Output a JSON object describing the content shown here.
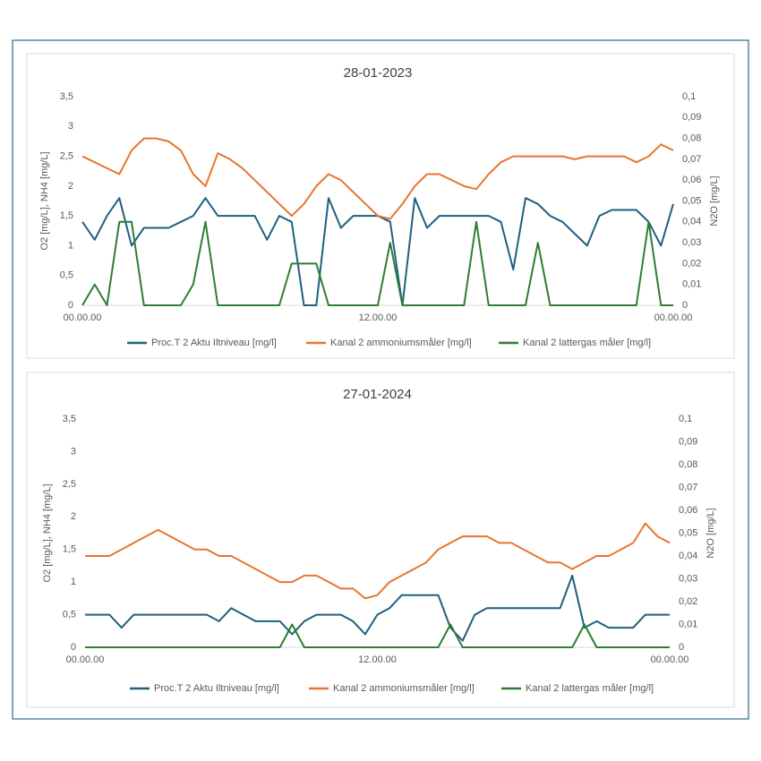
{
  "chart_data": [
    {
      "type": "line",
      "title": "28-01-2023",
      "y_label": "O2 [mg/L], NH4 [mg/L]",
      "y2_label": "N2O [mg/L]",
      "x": [
        0,
        0.5,
        1,
        1.5,
        2,
        2.5,
        3,
        3.5,
        4,
        4.5,
        5,
        5.5,
        6,
        6.5,
        7,
        7.5,
        8,
        8.5,
        9,
        9.5,
        10,
        10.5,
        11,
        11.5,
        12,
        12.5,
        13,
        13.5,
        14,
        14.5,
        15,
        15.5,
        16,
        16.5,
        17,
        17.5,
        18,
        18.5,
        19,
        19.5,
        20,
        20.5,
        21,
        21.5,
        22,
        22.5,
        23,
        23.5,
        24
      ],
      "xlim": [
        0,
        24
      ],
      "xticks": [
        {
          "value": 0,
          "label": "00.00.00"
        },
        {
          "value": 12,
          "label": "12.00.00"
        },
        {
          "value": 24,
          "label": "00.00.00"
        }
      ],
      "ylim": [
        0,
        3.5
      ],
      "yticks": [
        0,
        {
          "value": 0.5,
          "label": "0,5"
        },
        1,
        {
          "value": 1.5,
          "label": "1,5"
        },
        2,
        {
          "value": 2.5,
          "label": "2,5"
        },
        3,
        {
          "value": 3.5,
          "label": "3,5"
        }
      ],
      "y2lim": [
        0,
        0.1
      ],
      "y2ticks": [
        0,
        {
          "value": 0.01,
          "label": "0,01"
        },
        {
          "value": 0.02,
          "label": "0,02"
        },
        {
          "value": 0.03,
          "label": "0,03"
        },
        {
          "value": 0.04,
          "label": "0,04"
        },
        {
          "value": 0.05,
          "label": "0,05"
        },
        {
          "value": 0.06,
          "label": "0,06"
        },
        {
          "value": 0.07,
          "label": "0,07"
        },
        {
          "value": 0.08,
          "label": "0,08"
        },
        {
          "value": 0.09,
          "label": "0,09"
        },
        {
          "value": 0.1,
          "label": "0,1"
        }
      ],
      "series": [
        {
          "name": "Proc.T 2 Aktu Iltniveau [mg/l]",
          "color": "#1f5f80",
          "values": [
            1.4,
            1.1,
            1.5,
            1.8,
            1.0,
            1.3,
            1.3,
            1.3,
            1.4,
            1.5,
            1.8,
            1.5,
            1.5,
            1.5,
            1.5,
            1.1,
            1.5,
            1.4,
            0,
            0,
            1.8,
            1.3,
            1.5,
            1.5,
            1.5,
            1.4,
            0,
            1.8,
            1.3,
            1.5,
            1.5,
            1.5,
            1.5,
            1.5,
            1.4,
            0.6,
            1.8,
            1.7,
            1.5,
            1.4,
            1.2,
            1.0,
            1.5,
            1.6,
            1.6,
            1.6,
            1.4,
            1.0,
            1.7
          ]
        },
        {
          "name": "Kanal 2 ammoniumsmåler [mg/l]",
          "color": "#e8752d",
          "values": [
            2.5,
            2.4,
            2.3,
            2.2,
            2.6,
            2.8,
            2.8,
            2.75,
            2.6,
            2.2,
            2.0,
            2.55,
            2.45,
            2.3,
            2.1,
            1.9,
            1.7,
            1.5,
            1.7,
            2.0,
            2.2,
            2.1,
            1.9,
            1.7,
            1.5,
            1.45,
            1.7,
            2.0,
            2.2,
            2.2,
            2.1,
            2.0,
            1.95,
            2.2,
            2.4,
            2.5,
            2.5,
            2.5,
            2.5,
            2.5,
            2.45,
            2.5,
            2.5,
            2.5,
            2.5,
            2.4,
            2.5,
            2.7,
            2.6
          ]
        },
        {
          "name": "Kanal 2 lattergas måler [mg/l]",
          "color": "#2e7d32",
          "axis": "y2",
          "values": [
            0,
            0.01,
            0,
            0.04,
            0.04,
            0,
            0,
            0,
            0,
            0.01,
            0.04,
            0,
            0,
            0,
            0,
            0,
            0,
            0.02,
            0.02,
            0.02,
            0,
            0,
            0,
            0,
            0,
            0.03,
            0,
            0,
            0,
            0,
            0,
            0,
            0.04,
            0,
            0,
            0,
            0,
            0.03,
            0,
            0,
            0,
            0,
            0,
            0,
            0,
            0,
            0.04,
            0,
            0
          ]
        }
      ]
    },
    {
      "type": "line",
      "title": "27-01-2024",
      "y_label": "O2 [mg/L], NH4 [mg/L]",
      "y2_label": "N2O [mg/L]",
      "x": [
        0,
        0.5,
        1,
        1.5,
        2,
        2.5,
        3,
        3.5,
        4,
        4.5,
        5,
        5.5,
        6,
        6.5,
        7,
        7.5,
        8,
        8.5,
        9,
        9.5,
        10,
        10.5,
        11,
        11.5,
        12,
        12.5,
        13,
        13.5,
        14,
        14.5,
        15,
        15.5,
        16,
        16.5,
        17,
        17.5,
        18,
        18.5,
        19,
        19.5,
        20,
        20.5,
        21,
        21.5,
        22,
        22.5,
        23,
        23.5,
        24
      ],
      "xlim": [
        0,
        24
      ],
      "xticks": [
        {
          "value": 0,
          "label": "00.00.00"
        },
        {
          "value": 12,
          "label": "12.00.00"
        },
        {
          "value": 24,
          "label": "00.00.00"
        }
      ],
      "ylim": [
        0,
        3.5
      ],
      "yticks": [
        0,
        {
          "value": 0.5,
          "label": "0,5"
        },
        1,
        {
          "value": 1.5,
          "label": "1,5"
        },
        2,
        {
          "value": 2.5,
          "label": "2,5"
        },
        3,
        {
          "value": 3.5,
          "label": "3,5"
        }
      ],
      "y2lim": [
        0,
        0.1
      ],
      "y2ticks": [
        0,
        {
          "value": 0.01,
          "label": "0,01"
        },
        {
          "value": 0.02,
          "label": "0,02"
        },
        {
          "value": 0.03,
          "label": "0,03"
        },
        {
          "value": 0.04,
          "label": "0,04"
        },
        {
          "value": 0.05,
          "label": "0,05"
        },
        {
          "value": 0.06,
          "label": "0,06"
        },
        {
          "value": 0.07,
          "label": "0,07"
        },
        {
          "value": 0.08,
          "label": "0,08"
        },
        {
          "value": 0.09,
          "label": "0,09"
        },
        {
          "value": 0.1,
          "label": "0,1"
        }
      ],
      "series": [
        {
          "name": "Proc.T 2 Aktu Iltniveau [mg/l]",
          "color": "#1f5f80",
          "values": [
            0.5,
            0.5,
            0.5,
            0.3,
            0.5,
            0.5,
            0.5,
            0.5,
            0.5,
            0.5,
            0.5,
            0.4,
            0.6,
            0.5,
            0.4,
            0.4,
            0.4,
            0.2,
            0.4,
            0.5,
            0.5,
            0.5,
            0.4,
            0.2,
            0.5,
            0.6,
            0.8,
            0.8,
            0.8,
            0.8,
            0.3,
            0.1,
            0.5,
            0.6,
            0.6,
            0.6,
            0.6,
            0.6,
            0.6,
            0.6,
            1.1,
            0.3,
            0.4,
            0.3,
            0.3,
            0.3,
            0.5,
            0.5,
            0.5
          ]
        },
        {
          "name": "Kanal 2 ammoniumsmåler [mg/l]",
          "color": "#e8752d",
          "values": [
            1.4,
            1.4,
            1.4,
            1.5,
            1.6,
            1.7,
            1.8,
            1.7,
            1.6,
            1.5,
            1.5,
            1.4,
            1.4,
            1.3,
            1.2,
            1.1,
            1.0,
            1.0,
            1.1,
            1.1,
            1.0,
            0.9,
            0.9,
            0.75,
            0.8,
            1.0,
            1.1,
            1.2,
            1.3,
            1.5,
            1.6,
            1.7,
            1.7,
            1.7,
            1.6,
            1.6,
            1.5,
            1.4,
            1.3,
            1.3,
            1.2,
            1.3,
            1.4,
            1.4,
            1.5,
            1.6,
            1.9,
            1.7,
            1.6
          ]
        },
        {
          "name": "Kanal 2 lattergas måler [mg/l]",
          "color": "#2e7d32",
          "axis": "y2",
          "values": [
            0,
            0,
            0,
            0,
            0,
            0,
            0,
            0,
            0,
            0,
            0,
            0,
            0,
            0,
            0,
            0,
            0,
            0.01,
            0,
            0,
            0,
            0,
            0,
            0,
            0,
            0,
            0,
            0,
            0,
            0,
            0.01,
            0,
            0,
            0,
            0,
            0,
            0,
            0,
            0,
            0,
            0,
            0.01,
            0,
            0,
            0,
            0,
            0,
            0,
            0
          ]
        }
      ]
    }
  ]
}
